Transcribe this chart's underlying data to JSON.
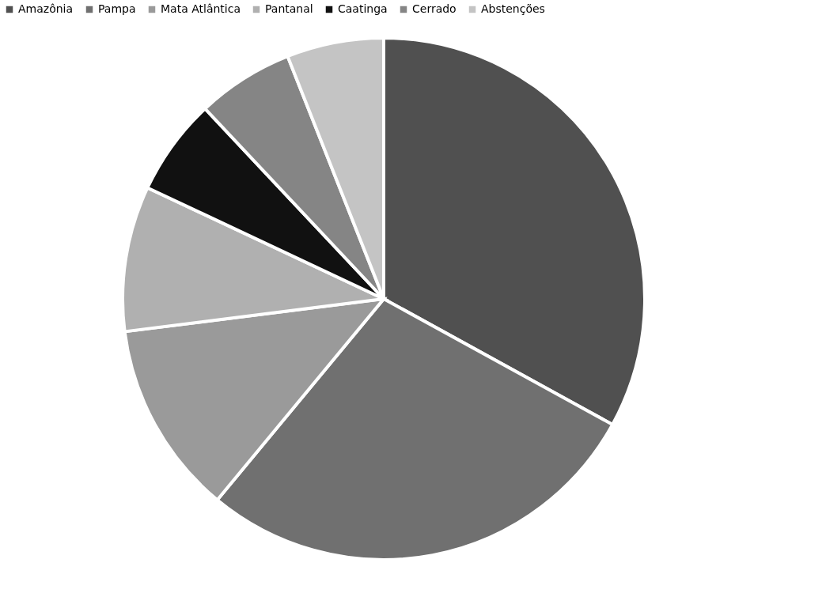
{
  "chart_data": {
    "type": "pie",
    "categories": [
      "Amazônia",
      "Pampa",
      "Mata Atlântica",
      "Pantanal",
      "Caatinga",
      "Cerrado",
      "Abstenções"
    ],
    "values": [
      33,
      28,
      12,
      9,
      6,
      6,
      6
    ],
    "colors": [
      "#505050",
      "#707070",
      "#9a9a9a",
      "#b0b0b0",
      "#111111",
      "#858585",
      "#c4c4c4"
    ],
    "legend": "top"
  }
}
